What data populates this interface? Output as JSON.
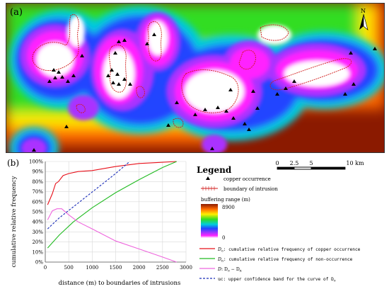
{
  "panel_a": {
    "label": "(a)",
    "north": "N",
    "scale_ticks": [
      "0",
      "2.5",
      "5",
      "10 km"
    ]
  },
  "panel_b": {
    "label": "(b)"
  },
  "colors": {
    "Do": "#e8101a",
    "Dn": "#22bb22",
    "D": "#ee66dd",
    "uc": "#1a2db8",
    "intrusion": "#d01818",
    "occurrence": "#000000"
  },
  "chart_data": {
    "type": "line",
    "xlabel": "distance (m) to boundaries of intrusions",
    "ylabel": "cumulative relative frequency",
    "xlim": [
      0,
      3000
    ],
    "ylim": [
      0,
      100
    ],
    "x_ticks": [
      "0",
      "500",
      "1000",
      "1500",
      "2000",
      "2500",
      "3000"
    ],
    "y_ticks": [
      "0%",
      "10%",
      "20%",
      "30%",
      "40%",
      "50%",
      "60%",
      "70%",
      "80%",
      "90%",
      "100%"
    ],
    "series": [
      {
        "key": "Do",
        "x": [
          50,
          150,
          220,
          280,
          380,
          500,
          700,
          1000,
          1500,
          2000,
          2400,
          2800
        ],
        "y": [
          57,
          68,
          78,
          80,
          86,
          88,
          90,
          91,
          95,
          98,
          99,
          100
        ]
      },
      {
        "key": "Dn",
        "x": [
          50,
          300,
          600,
          1000,
          1500,
          2000,
          2500,
          2800
        ],
        "y": [
          14,
          27,
          40,
          54,
          69,
          82,
          94,
          100
        ]
      },
      {
        "key": "D",
        "x": [
          50,
          150,
          250,
          350,
          500,
          700,
          1000,
          1500,
          2000,
          2500,
          2800
        ],
        "y": [
          42,
          51,
          53,
          53,
          47,
          40,
          33,
          21,
          13,
          5,
          0
        ]
      },
      {
        "key": "uc",
        "x": [
          50,
          300,
          600,
          900,
          1200,
          1500,
          1800
        ],
        "y": [
          33,
          44,
          55,
          66,
          77,
          88,
          100
        ]
      }
    ]
  },
  "legend": {
    "title": "Legend",
    "occurrence": "copper occurrence",
    "intrusion": "boundary of intrusion",
    "buffer_title": "buffering range (m)",
    "buffer_max": "8900",
    "buffer_min": "0",
    "curves": {
      "Do_sym": "D",
      "Do_sub": "o",
      "Do_text": ": cumulative relative frequency of copper occurrence",
      "Dn_sym": "D",
      "Dn_sub": "n",
      "Dn_text": ": cumulative relative frequency of non-occurrence",
      "D_sym": "D",
      "D_text": ":  D",
      "D_sub1": "o",
      "D_minus": " − D",
      "D_sub2": "n",
      "uc_sym": "uc",
      "uc_text": ": upper confidence band for the curve of D",
      "uc_sub": "o"
    }
  }
}
